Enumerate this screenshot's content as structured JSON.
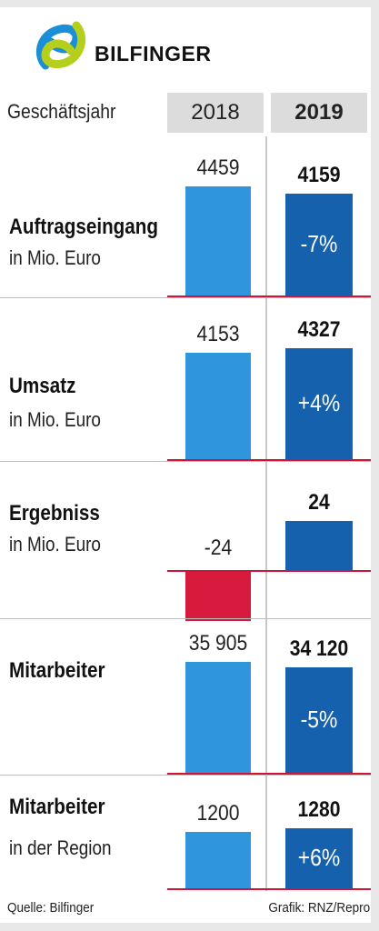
{
  "brand": {
    "name": "BILFINGER"
  },
  "header": {
    "label": "Geschäftsjahr",
    "year_prev": "2018",
    "year_curr": "2019"
  },
  "colors": {
    "prev": "#2f95dc",
    "curr": "#1661ae",
    "negative": "#d91a3f",
    "axis": "#d2133a"
  },
  "chart_data": [
    {
      "type": "bar",
      "title": "Auftragseingang",
      "subtitle": "in Mio. Euro",
      "categories": [
        "2018",
        "2019"
      ],
      "values": [
        4459,
        4159
      ],
      "labels": [
        "4459",
        "4159"
      ],
      "change": "-7%"
    },
    {
      "type": "bar",
      "title": "Umsatz",
      "subtitle": "in Mio. Euro",
      "categories": [
        "2018",
        "2019"
      ],
      "values": [
        4153,
        4327
      ],
      "labels": [
        "4153",
        "4327"
      ],
      "change": "+4%"
    },
    {
      "type": "bar",
      "title": "Ergebniss",
      "subtitle": "in Mio. Euro",
      "categories": [
        "2018",
        "2019"
      ],
      "values": [
        -24,
        24
      ],
      "labels": [
        "-24",
        "24"
      ],
      "change": ""
    },
    {
      "type": "bar",
      "title": "Mitarbeiter",
      "subtitle": "",
      "categories": [
        "2018",
        "2019"
      ],
      "values": [
        35905,
        34120
      ],
      "labels": [
        "35 905",
        "34 120"
      ],
      "change": "-5%"
    },
    {
      "type": "bar",
      "title": "Mitarbeiter",
      "subtitle": "in der Region",
      "categories": [
        "2018",
        "2019"
      ],
      "values": [
        1200,
        1280
      ],
      "labels": [
        "1200",
        "1280"
      ],
      "change": "+6%"
    }
  ],
  "footer": {
    "source": "Quelle: Bilfinger",
    "credit": "Grafik: RNZ/Repro"
  }
}
